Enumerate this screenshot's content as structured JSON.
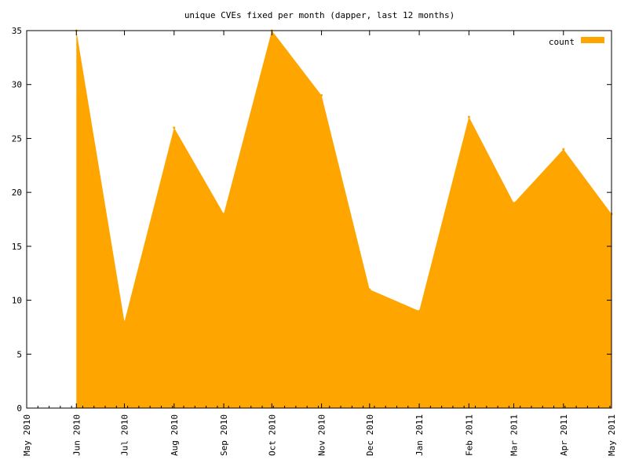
{
  "chart_data": {
    "type": "area",
    "title": "unique CVEs fixed per month (dapper, last 12 months)",
    "xlabel": "",
    "ylabel": "",
    "x_ticks": [
      "May 2010",
      "Jun 2010",
      "Jul 2010",
      "Aug 2010",
      "Sep 2010",
      "Oct 2010",
      "Nov 2010",
      "Dec 2010",
      "Jan 2011",
      "Feb 2011",
      "Mar 2011",
      "Apr 2011",
      "May 2011"
    ],
    "x_range": [
      "2010-05-01",
      "2011-05-01"
    ],
    "y_ticks": [
      0,
      5,
      10,
      15,
      20,
      25,
      30,
      35
    ],
    "ylim": [
      0,
      35
    ],
    "grid": false,
    "legend": "top-right",
    "colors": {
      "fill": "#ffa500",
      "axis": "#000000"
    },
    "series": [
      {
        "name": "count",
        "x": [
          "2010-06-01",
          "2010-07-01",
          "2010-08-01",
          "2010-09-01",
          "2010-10-01",
          "2010-11-01",
          "2010-12-01",
          "2011-01-01",
          "2011-02-01",
          "2011-03-01",
          "2011-04-01",
          "2011-05-01"
        ],
        "values": [
          35,
          8,
          26,
          18,
          35,
          29,
          11,
          9,
          27,
          19,
          24,
          18
        ]
      }
    ]
  }
}
